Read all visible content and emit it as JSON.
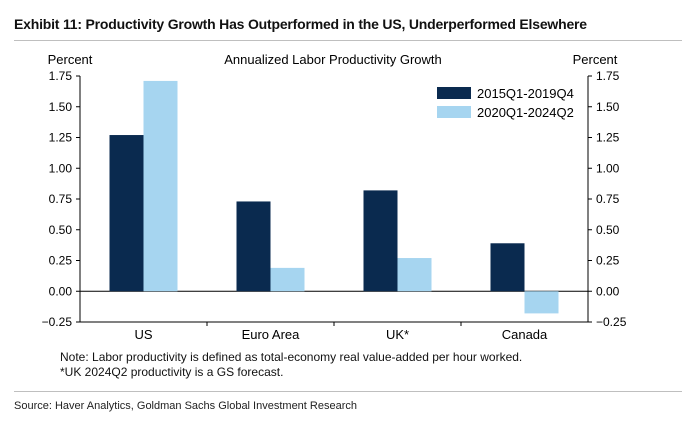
{
  "exhibit_title": "Exhibit 11: Productivity Growth Has Outperformed in the US, Underperformed Elsewhere",
  "notes": [
    "Note: Labor productivity is defined as total-economy real value-added per hour worked.",
    "*UK 2024Q2 productivity is a GS forecast."
  ],
  "source": "Source: Haver Analytics, Goldman Sachs Global Investment Research",
  "colors": {
    "series1": "#0a2a4f",
    "series2": "#a6d5f0",
    "axis": "#000000"
  },
  "chart_data": {
    "type": "bar",
    "title": "Annualized Labor Productivity Growth",
    "ylabel_left": "Percent",
    "ylabel_right": "Percent",
    "categories": [
      "US",
      "Euro Area",
      "UK*",
      "Canada"
    ],
    "series": [
      {
        "name": "2015Q1-2019Q4",
        "values": [
          1.27,
          0.73,
          0.82,
          0.39
        ]
      },
      {
        "name": "2020Q1-2024Q2",
        "values": [
          1.71,
          0.19,
          0.27,
          -0.18
        ]
      }
    ],
    "ylim": [
      -0.25,
      1.75
    ],
    "yticks": [
      1.75,
      1.5,
      1.25,
      1.0,
      0.75,
      0.5,
      0.25,
      0.0,
      -0.25
    ],
    "ytick_labels": [
      "1.75",
      "1.50",
      "1.25",
      "1.00",
      "0.75",
      "0.50",
      "0.25",
      "0.00",
      "−0.25"
    ],
    "legend": "top-right",
    "grid": false
  }
}
